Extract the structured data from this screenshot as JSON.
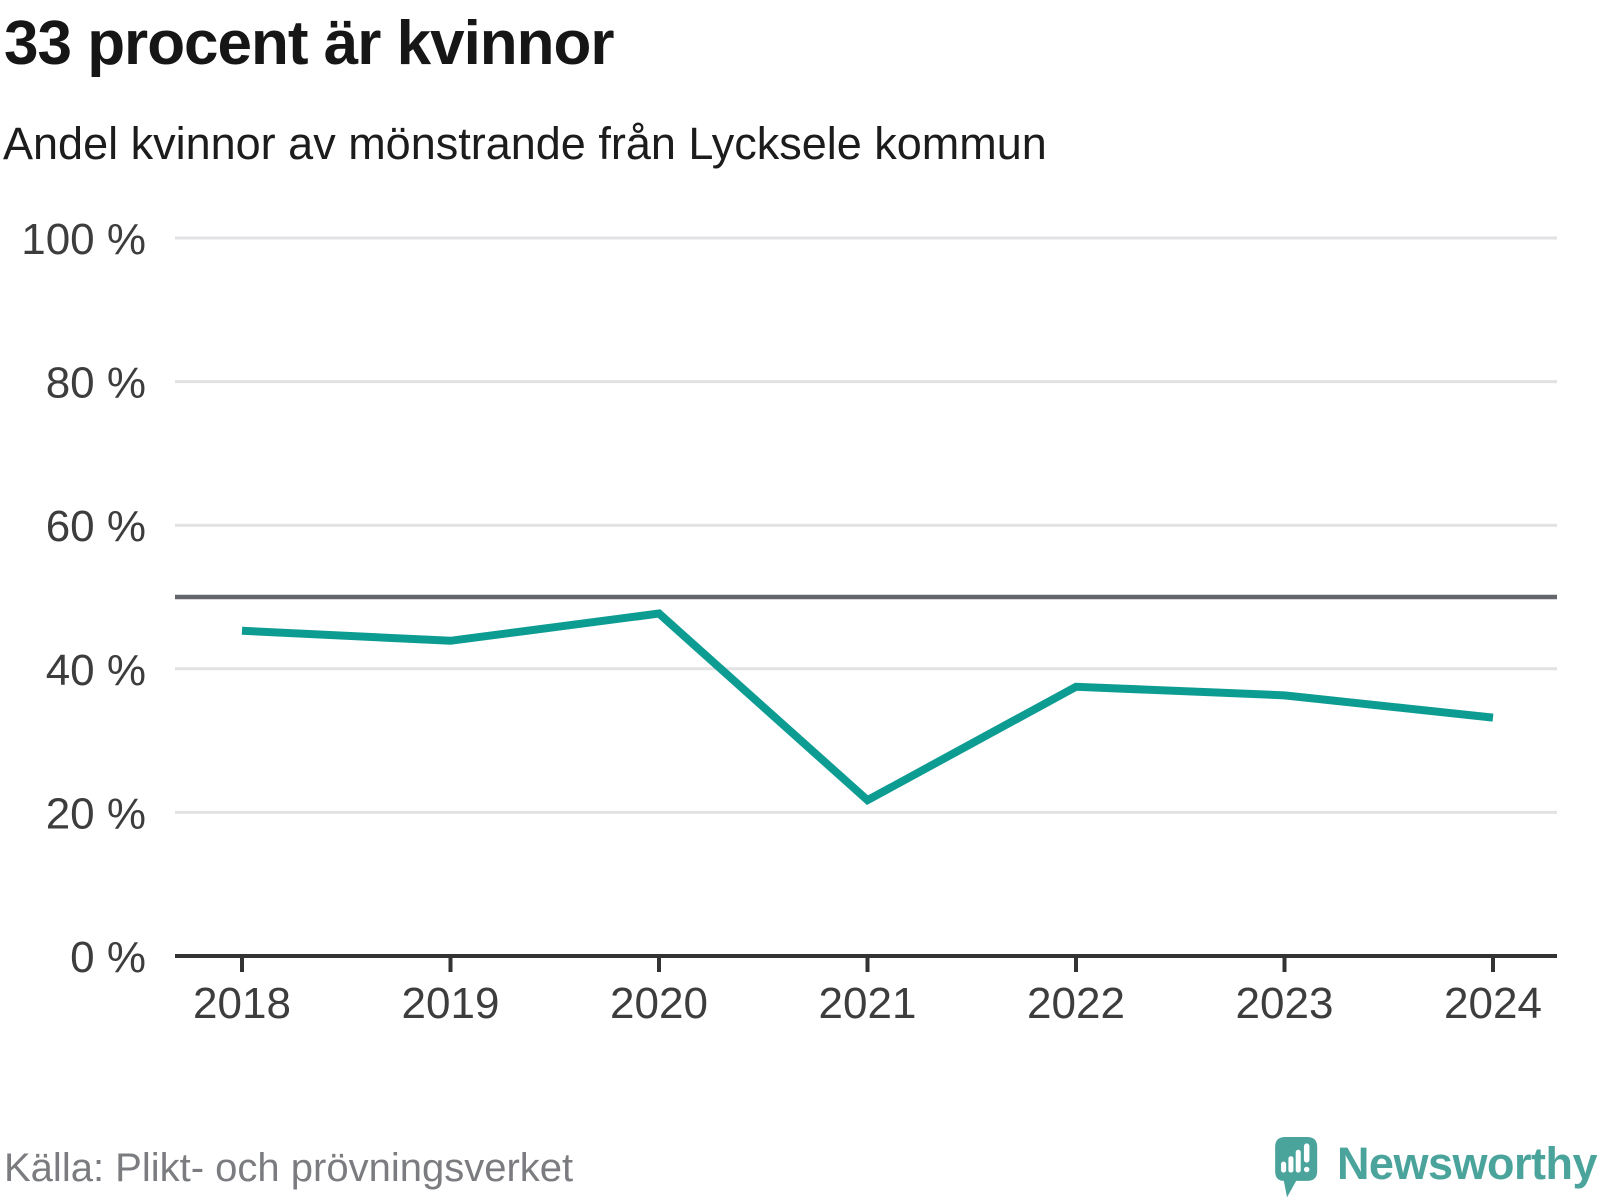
{
  "header": {
    "title": "33 procent är kvinnor",
    "subtitle": "Andel kvinnor av mönstrande från Lycksele kommun"
  },
  "chart_data": {
    "type": "line",
    "title": "33 procent är kvinnor",
    "subtitle": "Andel kvinnor av mönstrande från Lycksele kommun",
    "x": [
      "2018",
      "2019",
      "2020",
      "2021",
      "2022",
      "2023",
      "2024"
    ],
    "series": [
      {
        "name": "Andel kvinnor av mönstrande från Lycksele kommun",
        "values": [
          45.3,
          43.9,
          47.7,
          21.7,
          37.5,
          36.3,
          33.2
        ]
      }
    ],
    "ylim": [
      0,
      100
    ],
    "ytick_values": [
      0,
      20,
      40,
      60,
      80,
      100
    ],
    "ytick_labels": [
      "0 %",
      "20 %",
      "40 %",
      "60 %",
      "80 %",
      "100 %"
    ],
    "reference_line_y": 50,
    "grid": "horizontal",
    "legend": "none",
    "colors": {
      "line": "#0d9c92",
      "grid": "#e2e2e4",
      "reference": "#63666b",
      "axis": "#333333",
      "tick_label": "#3d3d3d"
    }
  },
  "footer": {
    "source": "Källa: Plikt- och prövningsverket",
    "brand": "Newsworthy",
    "brand_color": "#4ba49c"
  }
}
